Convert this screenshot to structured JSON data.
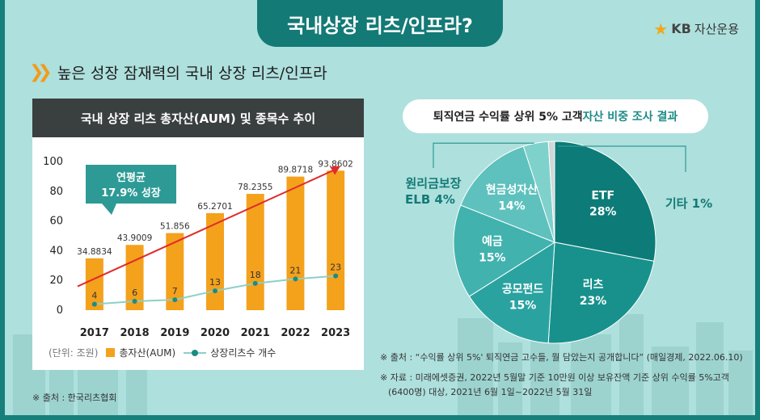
{
  "header": {
    "title": "국내상장 리츠/인프라?"
  },
  "brand": {
    "name_kb": "KB",
    "name_rest": "자산운용"
  },
  "subtitle": "높은 성장 잠재력의 국내 상장 리츠/인프라",
  "left_chart": {
    "heading": "국내 상장 리츠 총자산(AUM) 및 종목수 추이",
    "callout_line1": "연평균",
    "callout_line2": "17.9% 성장",
    "legend_unit": "(단위: 조원)",
    "legend_bar": "총자산(AUM)",
    "legend_line": "상장리츠수 개수",
    "source": "※ 출처 : 한국리츠협회"
  },
  "right_chart": {
    "heading_plain": "퇴직연금 수익률 상위 5% 고객 ",
    "heading_highlight": "자산 비중 조사 결과",
    "note1": "※ 출처 : “수익률 상위 5%' 퇴직연금 고수들, 뭘 담았는지 공개합니다” (매일경제, 2022.06.10)",
    "note2a": "※ 자료 : 미래에셋증권, 2022년 5월말 기준 10만원 이상 보유잔액 기준 상위 수익률 5%고객",
    "note2b": "(6400명) 대상, 2021년 6월 1일~2022년 5월 31일"
  },
  "chart_data": [
    {
      "type": "bar",
      "categories": [
        "2017",
        "2018",
        "2019",
        "2020",
        "2021",
        "2022",
        "2023"
      ],
      "series": [
        {
          "name": "총자산(AUM)",
          "values": [
            34.8834,
            43.9009,
            51.856,
            65.2701,
            78.2355,
            89.8718,
            93.8602
          ]
        },
        {
          "name": "상장리츠수 개수",
          "values": [
            4,
            6,
            7,
            13,
            18,
            21,
            23
          ]
        }
      ],
      "yticks": [
        0,
        20,
        40,
        60,
        80,
        100
      ],
      "ylim": [
        0,
        100
      ],
      "colors": {
        "bar": "#f4a11c",
        "line": "#8cd0c8",
        "marker": "#1c8b82",
        "trend": "#e02b2b"
      }
    },
    {
      "type": "pie",
      "slices": [
        {
          "label": "ETF",
          "pct": "28%",
          "value": 28,
          "color": "#0d7c78"
        },
        {
          "label": "리츠",
          "pct": "23%",
          "value": 23,
          "color": "#18918c"
        },
        {
          "label": "공모펀드",
          "pct": "15%",
          "value": 15,
          "color": "#2aa3a0"
        },
        {
          "label": "예금",
          "pct": "15%",
          "value": 15,
          "color": "#41b2ae"
        },
        {
          "label": "현금성자산",
          "pct": "14%",
          "value": 14,
          "color": "#5ec1bd"
        },
        {
          "label": "원리금보장 ELB",
          "line1": "원리금보장",
          "line2": "ELB 4%",
          "value": 4,
          "color": "#7fd1cc"
        },
        {
          "label": "기타 1%",
          "value": 1,
          "color": "#cfd8d8"
        }
      ]
    }
  ]
}
